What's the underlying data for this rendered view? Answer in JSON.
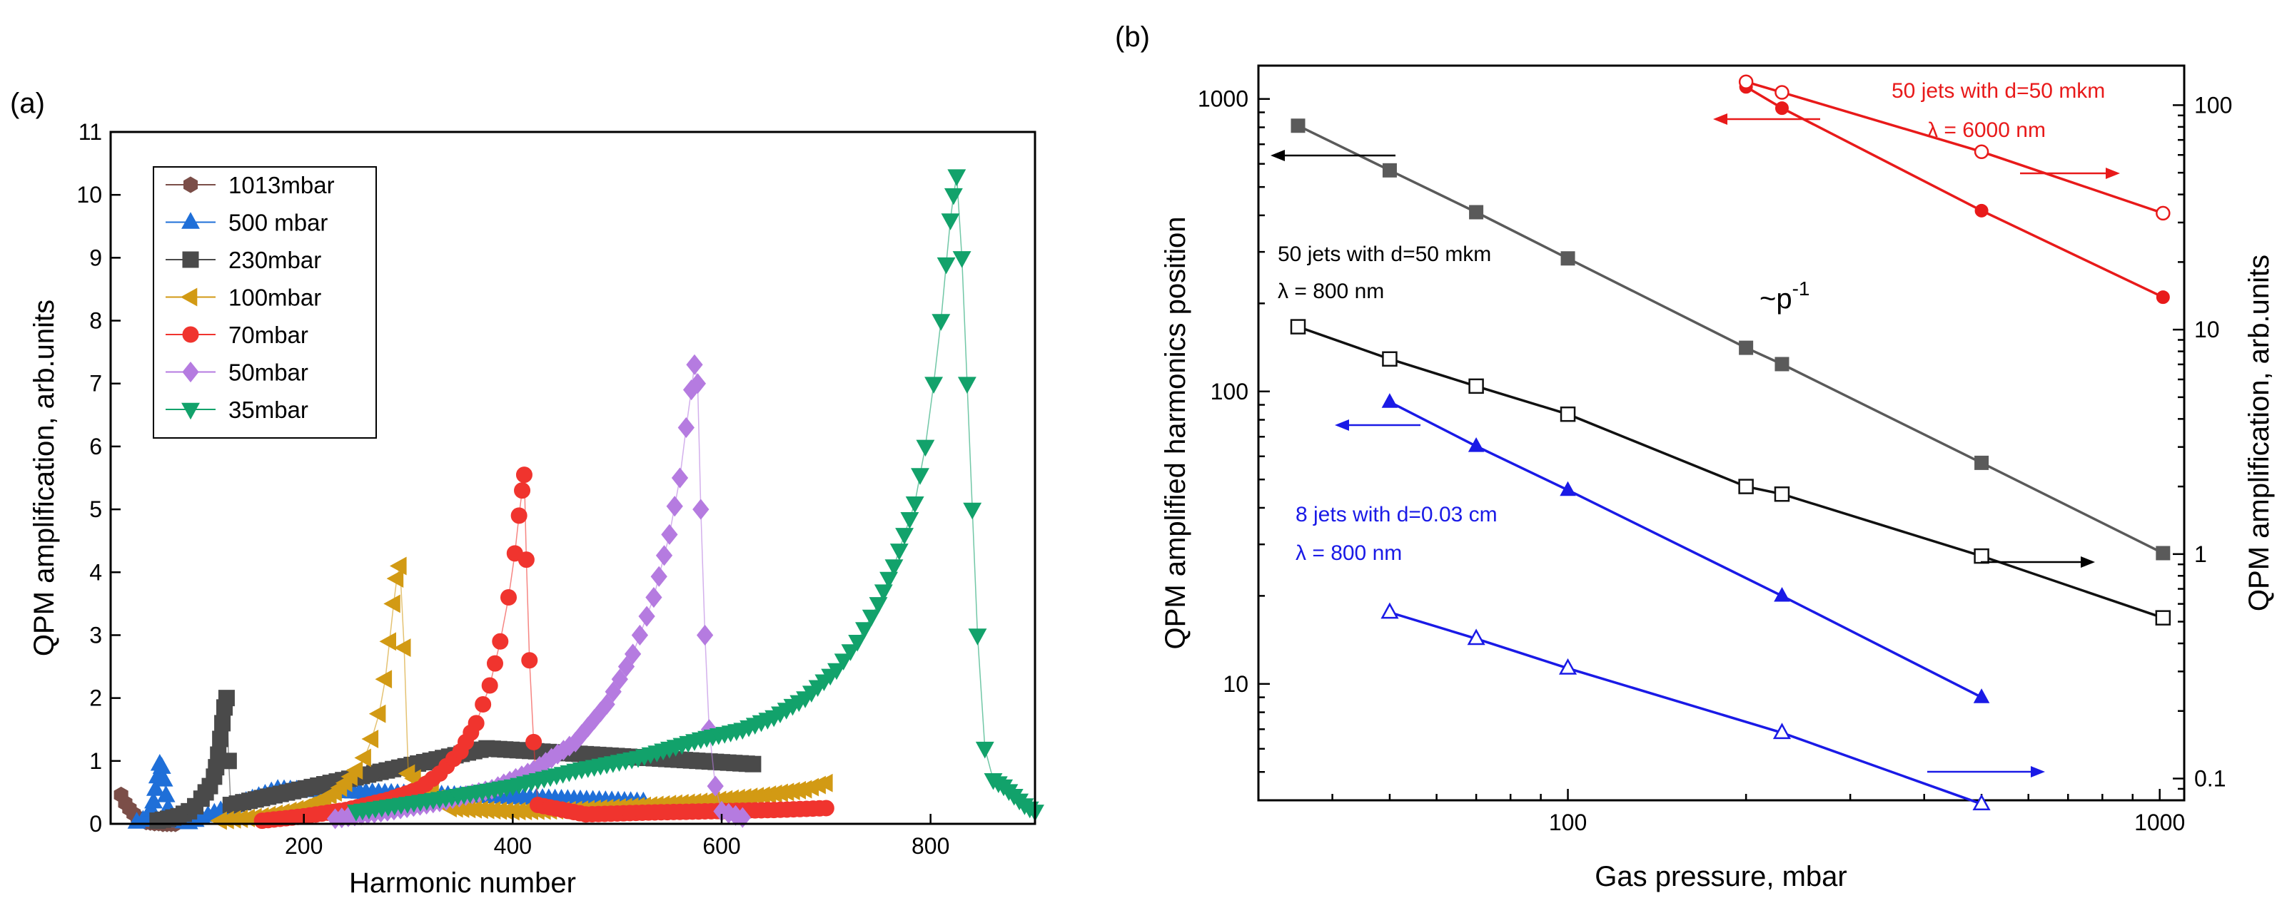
{
  "chart_data": [
    {
      "panel": "(a)",
      "type": "scatter",
      "xlabel": "Harmonic number",
      "ylabel": "QPM amplification, arb.units",
      "xlim": [
        15,
        900
      ],
      "ylim": [
        0,
        11
      ],
      "xticks": [
        200,
        400,
        600,
        800
      ],
      "yticks": [
        0,
        1,
        2,
        3,
        4,
        5,
        6,
        7,
        8,
        9,
        10,
        11
      ],
      "legend_position": "top-left",
      "series": [
        {
          "name": "1013mbar",
          "color": "#7b4e48",
          "marker": "hexagon",
          "x": [
            25,
            29,
            33,
            37,
            41,
            45,
            49,
            53,
            57,
            61,
            65,
            69,
            73,
            77
          ],
          "y": [
            0.46,
            0.33,
            0.24,
            0.16,
            0.1,
            0.06,
            0.03,
            0.02,
            0.01,
            0.01,
            0.0,
            0.0,
            0.0,
            0.0
          ]
        },
        {
          "name": "500 mbar",
          "color": "#1f6fd8",
          "marker": "triangle-up",
          "x": [
            40,
            46,
            50,
            54,
            56,
            58,
            60,
            62,
            64,
            66,
            68,
            70,
            74,
            80,
            90,
            175,
            525
          ],
          "y": [
            0.03,
            0.06,
            0.12,
            0.22,
            0.35,
            0.55,
            0.75,
            0.95,
            0.9,
            0.7,
            0.45,
            0.25,
            0.12,
            0.05,
            0.02,
            0.55,
            0.35
          ]
        },
        {
          "name": "230mbar",
          "color": "#4a4a4a",
          "marker": "square",
          "x": [
            60,
            70,
            80,
            90,
            96,
            102,
            106,
            110,
            114,
            116,
            118,
            120,
            122,
            124,
            126,
            128,
            130,
            375,
            630
          ],
          "y": [
            0.05,
            0.08,
            0.12,
            0.2,
            0.28,
            0.4,
            0.5,
            0.6,
            0.75,
            0.9,
            1.1,
            1.35,
            1.6,
            1.85,
            2.0,
            1.0,
            0.3,
            1.2,
            0.95
          ]
        },
        {
          "name": "100mbar",
          "color": "#d29a14",
          "marker": "triangle-left",
          "x": [
            120,
            140,
            160,
            180,
            200,
            215,
            230,
            240,
            250,
            258,
            265,
            272,
            278,
            282,
            286,
            289,
            292,
            296,
            300,
            340,
            400,
            460,
            520,
            580,
            640,
            680,
            700
          ],
          "y": [
            0.05,
            0.08,
            0.12,
            0.18,
            0.26,
            0.36,
            0.5,
            0.65,
            0.85,
            1.05,
            1.35,
            1.75,
            2.3,
            2.9,
            3.5,
            3.9,
            4.1,
            2.8,
            0.8,
            0.25,
            0.2,
            0.22,
            0.28,
            0.35,
            0.45,
            0.55,
            0.65
          ]
        },
        {
          "name": "70mbar",
          "color": "#f0342e",
          "marker": "circle",
          "x": [
            160,
            200,
            240,
            280,
            310,
            330,
            350,
            365,
            378,
            388,
            396,
            402,
            406,
            409,
            411,
            413,
            416,
            420,
            424,
            470,
            530,
            590,
            650,
            700
          ],
          "y": [
            0.05,
            0.12,
            0.22,
            0.38,
            0.55,
            0.8,
            1.15,
            1.6,
            2.2,
            2.9,
            3.6,
            4.3,
            4.9,
            5.3,
            5.55,
            4.2,
            2.6,
            1.3,
            0.3,
            0.15,
            0.18,
            0.2,
            0.22,
            0.25
          ]
        },
        {
          "name": "50mbar",
          "color": "#b57be0",
          "marker": "diamond",
          "x": [
            230,
            280,
            330,
            380,
            420,
            460,
            490,
            515,
            535,
            550,
            560,
            566,
            571,
            574,
            577,
            580,
            584,
            588,
            594,
            600,
            620
          ],
          "y": [
            0.08,
            0.2,
            0.35,
            0.55,
            0.85,
            1.3,
            1.9,
            2.7,
            3.6,
            4.6,
            5.5,
            6.3,
            6.9,
            7.3,
            7.0,
            5.0,
            3.0,
            1.5,
            0.6,
            0.2,
            0.1
          ]
        },
        {
          "name": "35mbar",
          "color": "#12a26b",
          "marker": "triangle-down",
          "x": [
            250,
            330,
            400,
            460,
            520,
            580,
            620,
            650,
            680,
            710,
            730,
            750,
            765,
            775,
            785,
            795,
            803,
            810,
            815,
            819,
            822,
            825,
            830,
            835,
            840,
            845,
            852,
            860,
            870,
            880,
            890,
            900
          ],
          "y": [
            0.2,
            0.4,
            0.6,
            0.85,
            1.05,
            1.35,
            1.5,
            1.7,
            2.0,
            2.45,
            2.9,
            3.5,
            4.1,
            4.6,
            5.1,
            6.0,
            7.0,
            8.0,
            8.9,
            9.6,
            10.0,
            10.3,
            9.0,
            7.0,
            5.0,
            3.0,
            1.2,
            0.7,
            0.6,
            0.45,
            0.3,
            0.2
          ]
        }
      ]
    },
    {
      "panel": "(b)",
      "type": "line",
      "xscale": "log",
      "yscale": "log",
      "xlabel": "Gas pressure, mbar",
      "ylabel": "QPM amplified harmonics position",
      "y2label": "QPM amplification, arb.units",
      "xlim": [
        30,
        1100
      ],
      "ylim": [
        4,
        1300
      ],
      "y2lim": [
        0.08,
        150
      ],
      "xticks": [
        100,
        1000
      ],
      "yticks": [
        10,
        100,
        1000
      ],
      "y2ticks": [
        0.1,
        1,
        10,
        100
      ],
      "annotations": {
        "trend": "~p",
        "trend_exponent": "-1",
        "black_group_line1": "50 jets with d=50 mkm",
        "black_group_line2": "λ = 800 nm",
        "blue_group_line1": "8 jets with d=0.03 cm",
        "blue_group_line2": "λ = 800 nm",
        "red_group_line1": "50 jets with d=50 mkm",
        "red_group_line2": "λ = 6000 nm"
      },
      "series": [
        {
          "name": "gray filled squares (position)",
          "color": "#5a5a5a",
          "marker": "square-filled",
          "axis": "left",
          "x": [
            35,
            50,
            70,
            100,
            200,
            230,
            500,
            1013
          ],
          "y": [
            810,
            570,
            410,
            285,
            141,
            124,
            57,
            28
          ]
        },
        {
          "name": "black open squares (amplification)",
          "color": "#111111",
          "marker": "square-open",
          "axis": "right",
          "x": [
            35,
            50,
            70,
            100,
            200,
            230,
            500,
            1013
          ],
          "y": [
            10.3,
            7.4,
            5.6,
            4.2,
            2.0,
            1.85,
            0.98,
            0.52
          ]
        },
        {
          "name": "blue filled triangles (position)",
          "color": "#1a1ae6",
          "marker": "triangle-filled",
          "axis": "left",
          "x": [
            50,
            70,
            100,
            230,
            500
          ],
          "y": [
            92,
            65,
            46,
            20,
            9
          ]
        },
        {
          "name": "blue open triangles (amplification)",
          "color": "#1a1ae6",
          "marker": "triangle-open",
          "axis": "right",
          "x": [
            50,
            70,
            100,
            230,
            500
          ],
          "y": [
            0.55,
            0.42,
            0.31,
            0.16,
            0.077
          ]
        },
        {
          "name": "red filled circles (position)",
          "color": "#e81a1a",
          "marker": "circle-filled",
          "axis": "left",
          "x": [
            200,
            230,
            500,
            1013
          ],
          "y": [
            1100,
            930,
            415,
            210
          ]
        },
        {
          "name": "red open circles (amplification)",
          "color": "#e81a1a",
          "marker": "circle-open",
          "axis": "right",
          "x": [
            200,
            230,
            500,
            1013
          ],
          "y": [
            127,
            114,
            62,
            33
          ]
        }
      ]
    }
  ]
}
